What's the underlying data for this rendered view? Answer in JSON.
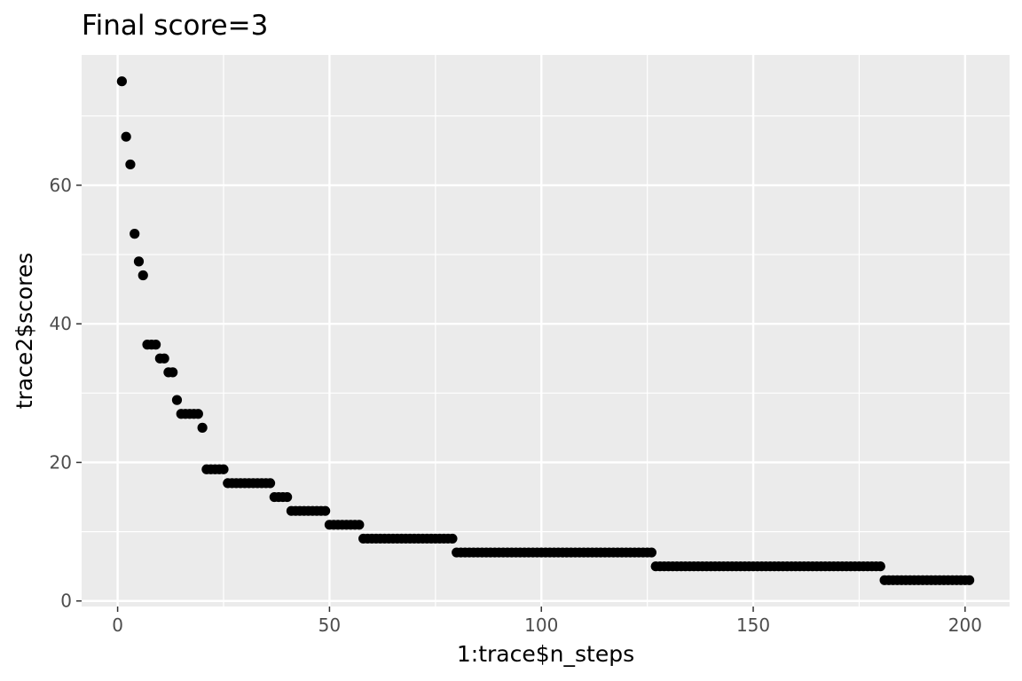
{
  "chart_data": {
    "type": "scatter",
    "title": "Final score=3",
    "xlabel": "1:trace$n_steps",
    "ylabel": "trace2$scores",
    "xlim": [
      -8.5,
      210.5
    ],
    "ylim": [
      -0.8,
      78.8
    ],
    "x_ticks": [
      0,
      50,
      100,
      150,
      200
    ],
    "y_ticks": [
      0,
      20,
      40,
      60
    ],
    "x_tick_labels": [
      "0",
      "50",
      "100",
      "150",
      "200"
    ],
    "y_tick_labels": [
      "0",
      "20",
      "40",
      "60"
    ],
    "grid": true,
    "legend": false,
    "colors": {
      "panel": "#ebebeb",
      "grid": "#ffffff",
      "point": "#000000",
      "tick": "#333333"
    },
    "segments": [
      {
        "x_from": 1,
        "x_to": 1,
        "y": 75
      },
      {
        "x_from": 2,
        "x_to": 2,
        "y": 67
      },
      {
        "x_from": 3,
        "x_to": 3,
        "y": 63
      },
      {
        "x_from": 4,
        "x_to": 4,
        "y": 53
      },
      {
        "x_from": 5,
        "x_to": 5,
        "y": 49
      },
      {
        "x_from": 6,
        "x_to": 6,
        "y": 47
      },
      {
        "x_from": 7,
        "x_to": 9,
        "y": 37
      },
      {
        "x_from": 10,
        "x_to": 11,
        "y": 35
      },
      {
        "x_from": 12,
        "x_to": 13,
        "y": 33
      },
      {
        "x_from": 14,
        "x_to": 14,
        "y": 29
      },
      {
        "x_from": 15,
        "x_to": 19,
        "y": 27
      },
      {
        "x_from": 20,
        "x_to": 20,
        "y": 25
      },
      {
        "x_from": 21,
        "x_to": 25,
        "y": 19
      },
      {
        "x_from": 26,
        "x_to": 36,
        "y": 17
      },
      {
        "x_from": 37,
        "x_to": 40,
        "y": 15
      },
      {
        "x_from": 41,
        "x_to": 49,
        "y": 13
      },
      {
        "x_from": 50,
        "x_to": 57,
        "y": 11
      },
      {
        "x_from": 58,
        "x_to": 79,
        "y": 9
      },
      {
        "x_from": 80,
        "x_to": 126,
        "y": 7
      },
      {
        "x_from": 127,
        "x_to": 180,
        "y": 5
      },
      {
        "x_from": 181,
        "x_to": 201,
        "y": 3
      }
    ]
  }
}
